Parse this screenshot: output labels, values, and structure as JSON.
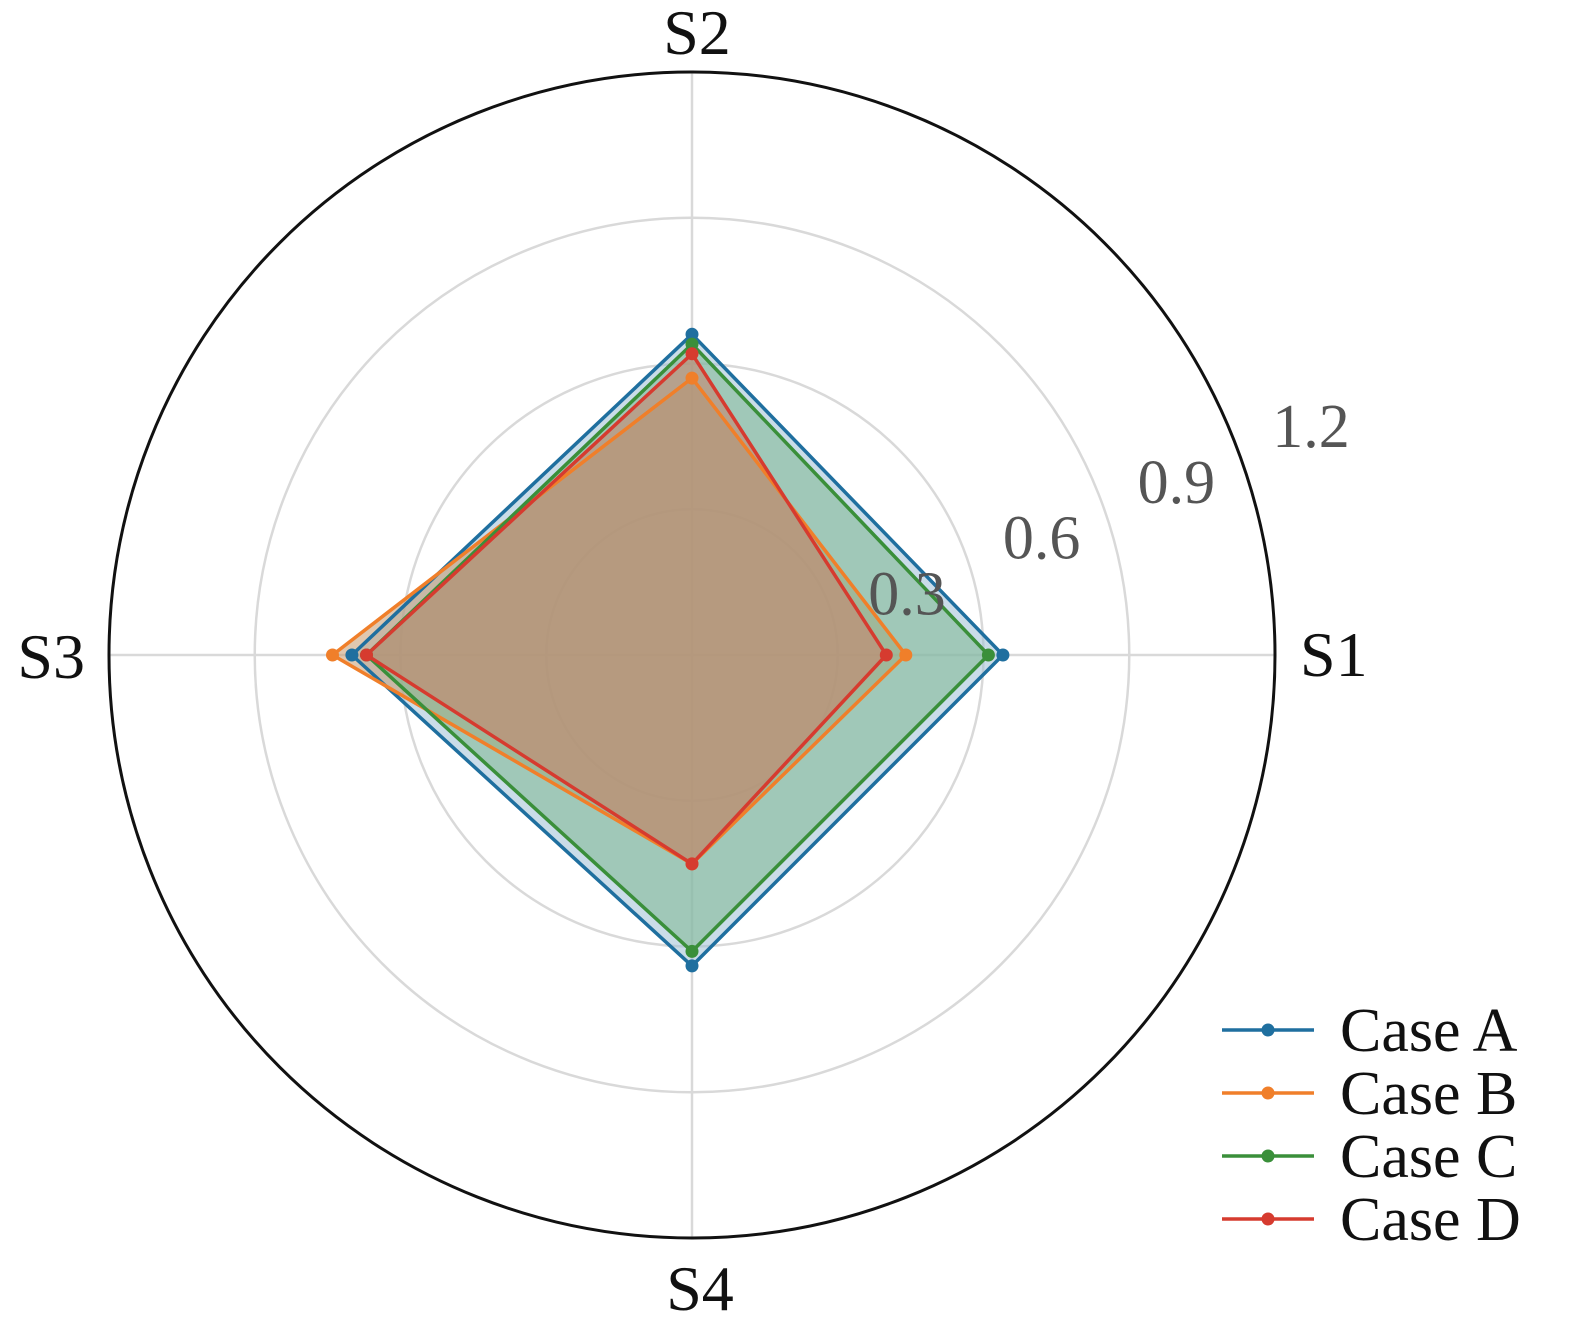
{
  "chart_data": {
    "type": "radar",
    "categories": [
      "S1",
      "S2",
      "S3",
      "S4"
    ],
    "radial_ticks": [
      "0.3",
      "0.6",
      "0.9",
      "1.2"
    ],
    "rlim": [
      0,
      1.2
    ],
    "grid": true,
    "legend_position": "bottom-right",
    "series": [
      {
        "name": "Case A",
        "color": "#1f6f9f",
        "values": [
          0.64,
          0.66,
          0.7,
          0.64
        ]
      },
      {
        "name": "Case B",
        "color": "#f07f2a",
        "values": [
          0.44,
          0.57,
          0.74,
          0.43
        ]
      },
      {
        "name": "Case C",
        "color": "#3a8f3a",
        "values": [
          0.61,
          0.64,
          0.67,
          0.61
        ]
      },
      {
        "name": "Case D",
        "color": "#d63b2f",
        "values": [
          0.4,
          0.62,
          0.67,
          0.43
        ]
      }
    ],
    "fill_colors": {
      "Case A": "#9fbfd6",
      "Case B": "#c79a70",
      "Case C": "#7eb88f",
      "Case D": "#c9826a"
    }
  }
}
